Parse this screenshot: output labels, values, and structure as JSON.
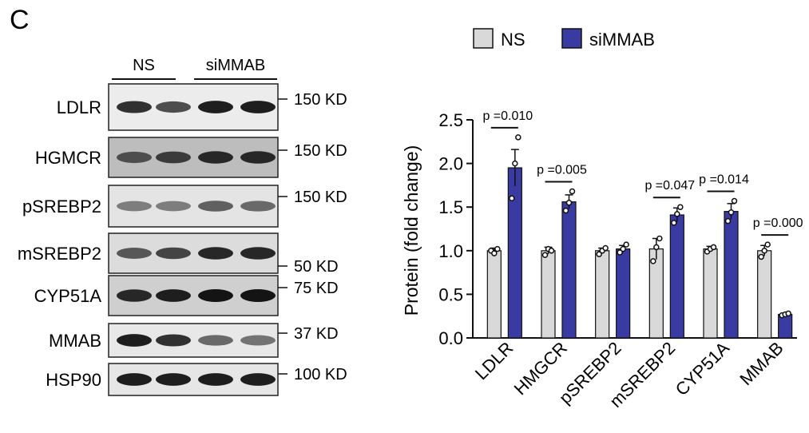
{
  "panel_label": "C",
  "blot": {
    "groups": [
      "NS",
      "siMMAB"
    ],
    "rows": [
      {
        "label": "LDLR",
        "marker": "150 KD",
        "intensity": [
          0.85,
          0.7,
          0.95,
          0.95
        ],
        "background": "#ececec"
      },
      {
        "label": "HGMCR",
        "marker": "150 KD",
        "intensity": [
          0.7,
          0.8,
          0.9,
          0.9
        ],
        "background": "#bdbdbd"
      },
      {
        "label": "pSREBP2",
        "marker": "150 KD",
        "intensity": [
          0.45,
          0.45,
          0.6,
          0.55
        ],
        "background": "#e4e4e4"
      },
      {
        "label": "mSREBP2",
        "marker": "50 KD",
        "intensity": [
          0.65,
          0.75,
          0.9,
          0.9
        ],
        "background": "#dcdcdc"
      },
      {
        "label": "CYP51A",
        "marker": "75 KD",
        "intensity": [
          0.9,
          0.95,
          1.0,
          1.0
        ],
        "background": "#cfcfcf"
      },
      {
        "label": "MMAB",
        "marker": "37 KD",
        "intensity": [
          0.95,
          0.85,
          0.55,
          0.5
        ],
        "background": "#e8e8e8"
      },
      {
        "label": "HSP90",
        "marker": "100 KD",
        "intensity": [
          0.95,
          0.95,
          0.95,
          0.95
        ],
        "background": "#e6e6e6"
      }
    ]
  },
  "chart_data": {
    "type": "bar",
    "ylabel": "Protein (fold change)",
    "ylim": [
      0,
      2.5
    ],
    "yticks": [
      "0.0",
      "0.5",
      "1.0",
      "1.5",
      "2.0",
      "2.5"
    ],
    "categories": [
      "LDLR",
      "HMGCR",
      "pSREBP2",
      "mSREBP2",
      "CYP51A",
      "MMAB"
    ],
    "legend": {
      "position": "top"
    },
    "series": [
      {
        "name": "NS",
        "color": "#d9d9d9",
        "values": [
          1.0,
          1.0,
          1.0,
          1.02,
          1.02,
          1.0
        ],
        "errors": [
          0.03,
          0.04,
          0.03,
          0.12,
          0.03,
          0.06
        ],
        "points": [
          [
            1.0,
            0.97,
            1.02
          ],
          [
            0.95,
            1.02,
            1.0
          ],
          [
            0.96,
            1.0,
            1.03
          ],
          [
            0.88,
            1.04,
            1.14
          ],
          [
            0.99,
            1.02,
            1.04
          ],
          [
            0.93,
            1.0,
            1.07
          ]
        ]
      },
      {
        "name": "siMMAB",
        "color": "#3a3aa3",
        "values": [
          1.95,
          1.56,
          1.02,
          1.41,
          1.45,
          0.27
        ],
        "errors": [
          0.21,
          0.08,
          0.04,
          0.08,
          0.09,
          0.01
        ],
        "points": [
          [
            1.6,
            2.0,
            2.3
          ],
          [
            1.46,
            1.55,
            1.68
          ],
          [
            0.98,
            1.02,
            1.07
          ],
          [
            1.32,
            1.42,
            1.5
          ],
          [
            1.34,
            1.44,
            1.57
          ],
          [
            0.26,
            0.27,
            0.28
          ]
        ]
      }
    ],
    "annotations": [
      "p =0.010",
      "p =0.005",
      "",
      "p =0.047",
      "p =0.014",
      "p =0.000"
    ]
  }
}
